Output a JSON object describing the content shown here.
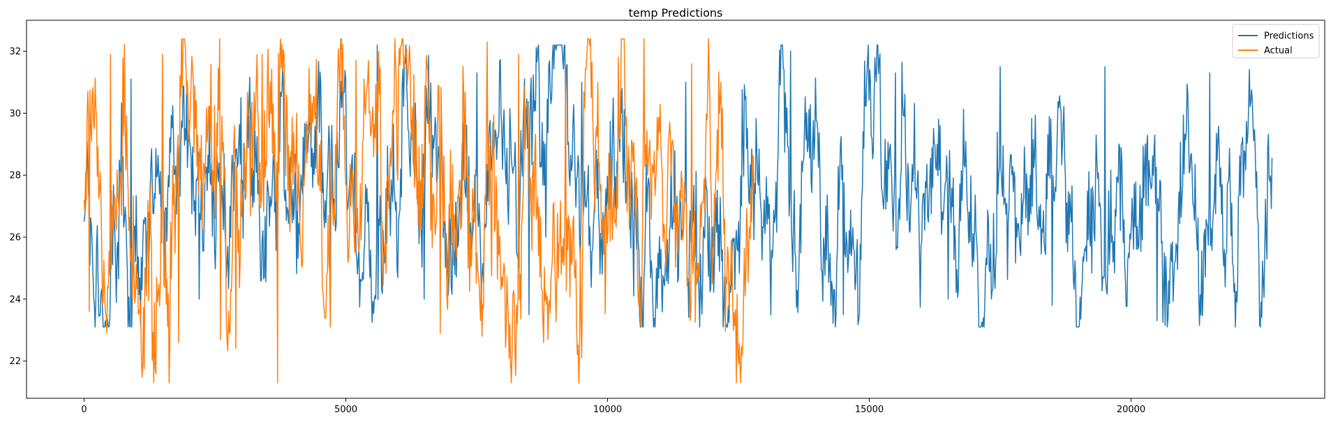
{
  "chart_data": {
    "type": "line",
    "title": "temp Predictions",
    "xlabel": "",
    "ylabel": "",
    "xlim": [
      -1100,
      23700
    ],
    "ylim": [
      20.8,
      33.0
    ],
    "xticks": [
      0,
      5000,
      10000,
      15000,
      20000
    ],
    "yticks": [
      22,
      24,
      26,
      28,
      30,
      32
    ],
    "grid": false,
    "legend_position": "top-right",
    "series": [
      {
        "name": "Predictions",
        "color": "#1f77b4",
        "x_range": [
          0,
          22700
        ],
        "approx_center": 27.4,
        "approx_min": 23.1,
        "approx_max": 32.2,
        "x": [
          0,
          400,
          900,
          1500,
          2200,
          3000,
          3800,
          4700,
          5600,
          6500,
          7500,
          8500,
          9500,
          10500,
          11500,
          12500,
          13500,
          14500,
          15500,
          16500,
          17500,
          18500,
          19500,
          20500,
          21500,
          22600
        ],
        "values": [
          26.5,
          23.3,
          31.1,
          30.8,
          24.0,
          30.5,
          31.5,
          23.1,
          32.2,
          24.0,
          31.3,
          23.5,
          31.0,
          24.1,
          31.0,
          26.5,
          32.0,
          23.5,
          31.3,
          24.0,
          31.5,
          23.8,
          31.5,
          23.3,
          31.3,
          25.3
        ]
      },
      {
        "name": "Actual",
        "color": "#ff7f0e",
        "x_range": [
          0,
          12800
        ],
        "approx_center": 27.4,
        "approx_min": 21.3,
        "approx_max": 32.4,
        "x": [
          0,
          100,
          500,
          1500,
          1800,
          2600,
          2900,
          3400,
          3700,
          4700,
          5200,
          6800,
          7700,
          8300,
          9000,
          9200,
          9500,
          10200,
          10700,
          11600,
          12000,
          12800
        ],
        "values": [
          27.2,
          23.6,
          31.9,
          31.9,
          22.6,
          22.7,
          22.4,
          31.9,
          21.3,
          23.1,
          31.7,
          22.9,
          32.3,
          31.9,
          24.5,
          31.5,
          22.1,
          31.8,
          32.4,
          31.6,
          24.5,
          27.5
        ]
      }
    ]
  }
}
